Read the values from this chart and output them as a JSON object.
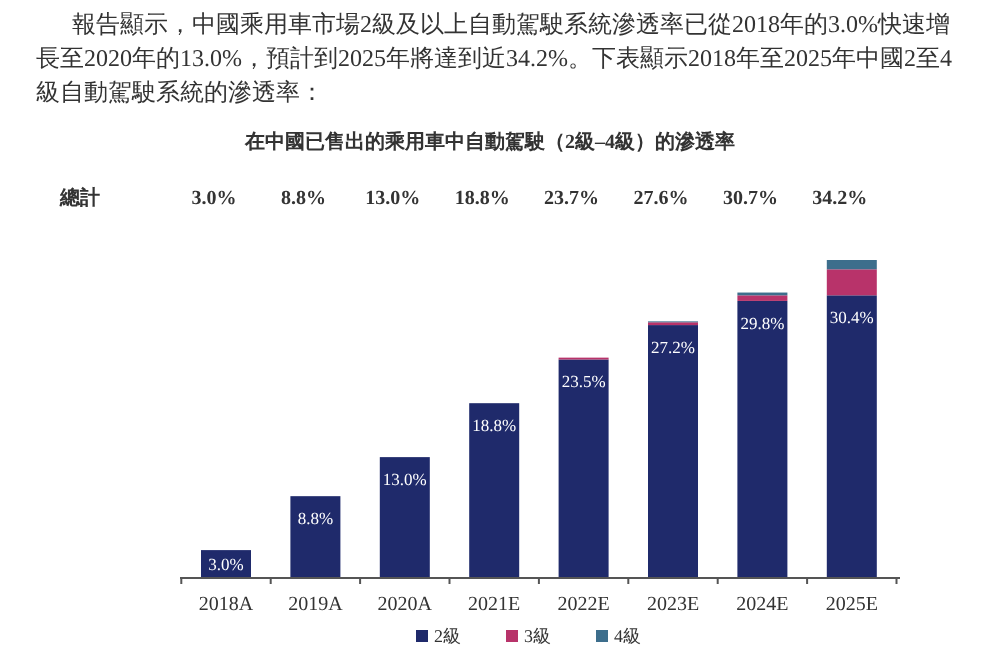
{
  "chart_data": {
    "type": "bar",
    "stacked": true,
    "title": "在中國已售出的乘用車中自動駕駛（2級–4級）的滲透率",
    "annotations": [
      "報告顯示，中國乘用車市場2級及以上自動駕駛系統滲透率已從2018年的3.0%快速增長至2020年的13.0%，預計到2025年將達到近34.2%。下表顯示2018年至2025年中國2至4級自動駕駛系統的滲透率：",
      "總計",
      "3.0%",
      "8.8%",
      "13.0%",
      "18.8%",
      "23.7%",
      "27.6%",
      "30.7%",
      "34.2%"
    ],
    "categories": [
      "2018A",
      "2019A",
      "2020A",
      "2021E",
      "2022E",
      "2023E",
      "2024E",
      "2025E"
    ],
    "legend": "bottom",
    "series": [
      {
        "name": "2級",
        "color": "#1f2a6b",
        "values": [
          3.0,
          8.8,
          13.0,
          18.8,
          23.5,
          27.2,
          29.8,
          30.4
        ],
        "value_labels": [
          "3.0%",
          "8.8%",
          "13.0%",
          "18.8%",
          "23.5%",
          "27.2%",
          "29.8%",
          "30.4%"
        ]
      },
      {
        "name": "3級",
        "color": "#b8336a",
        "values": [
          0,
          0,
          0,
          0,
          0.2,
          0.3,
          0.6,
          2.8
        ]
      },
      {
        "name": "4級",
        "color": "#3d6e8c",
        "values": [
          0,
          0,
          0,
          0,
          0,
          0.1,
          0.3,
          1.0
        ]
      }
    ]
  }
}
